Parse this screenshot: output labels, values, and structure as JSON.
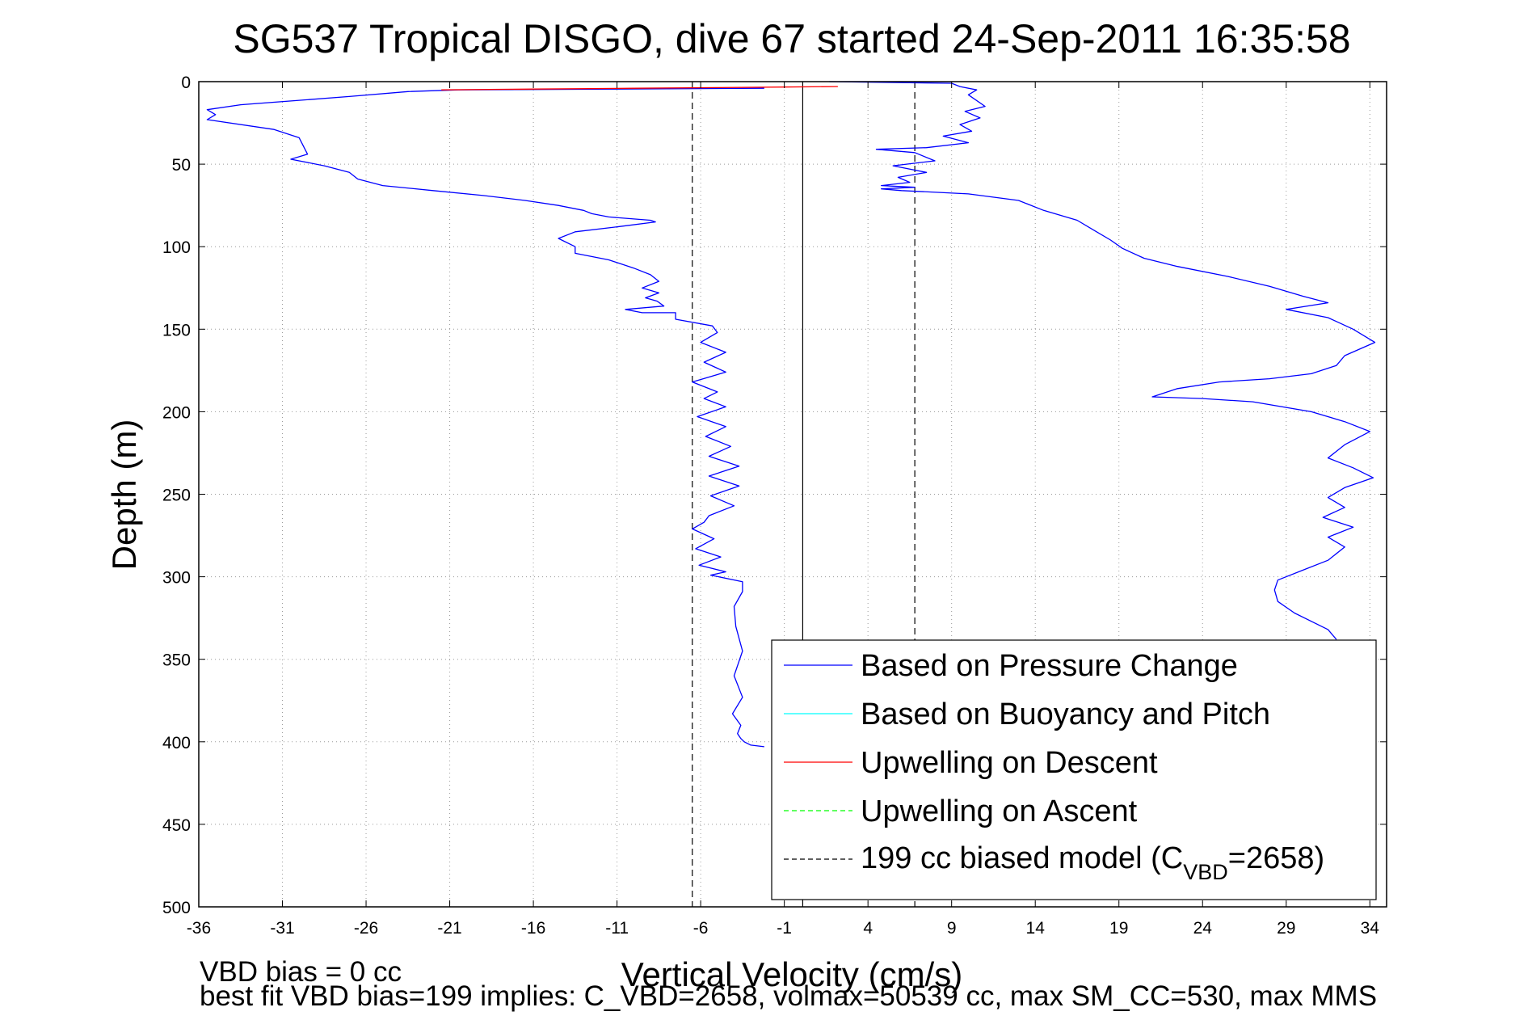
{
  "chart_data": {
    "type": "line",
    "title": "SG537 Tropical DISGO, dive 67 started 24-Sep-2011 16:35:58",
    "xlabel": "Vertical Velocity (cm/s)",
    "ylabel": "Depth (m)",
    "xlim": [
      -36,
      35
    ],
    "ylim": [
      0,
      500
    ],
    "y_reversed": true,
    "grid": true,
    "legend_position": "bottom-right",
    "x_ticks": [
      "-36",
      "-31",
      "-26",
      "-21",
      "-16",
      "-11",
      "-6",
      "-1",
      "4",
      "9",
      "14",
      "19",
      "24",
      "29",
      "34"
    ],
    "y_ticks": [
      "0",
      "50",
      "100",
      "150",
      "200",
      "250",
      "300",
      "350",
      "400",
      "450",
      "500"
    ],
    "legend": {
      "pressure": "Based on Pressure Change",
      "buoyancy": "Based on Buoyancy and Pitch",
      "up_descent": "Upwelling on Descent",
      "up_ascent": "Upwelling on Ascent",
      "model_prefix": "199 cc biased model (C",
      "model_sub": "VBD",
      "model_suffix": "=2658)"
    },
    "colors": {
      "pressure": "#0000ff",
      "buoyancy": "#00ffff",
      "up_descent": "#ff0000",
      "up_ascent": "#00ff00",
      "model": "#000000"
    },
    "series": [
      {
        "name": "Based on Pressure Change",
        "segment": "descent",
        "x": [
          -2.2,
          -20.5,
          -23.5,
          -27,
          -33.5,
          -35.5,
          -35,
          -35.5,
          -31.5,
          -30,
          -29.5,
          -30.5,
          -28.5,
          -27,
          -26.5,
          -25,
          -22,
          -19,
          -16.5,
          -14.5,
          -13,
          -12.5,
          -11.5,
          -9,
          -8.7,
          -11,
          -13.5,
          -14.5,
          -13.5,
          -13.5,
          -11.5,
          -10,
          -9,
          -8.5,
          -9.5,
          -8.5,
          -9.3,
          -8.6,
          -8.2,
          -10.5,
          -9.5,
          -7.5,
          -7.5,
          -5.3,
          -5,
          -6,
          -4.5,
          -5.8,
          -4.5,
          -6.5,
          -5,
          -5.8,
          -4.5,
          -6.2,
          -4.5,
          -5.7,
          -4.2,
          -5.5,
          -3.7,
          -5.5,
          -3.7,
          -5.4,
          -4,
          -5.5,
          -5.8,
          -6.5,
          -5.2,
          -6.3,
          -4.8,
          -6.1,
          -4.5,
          -5.4,
          -3.5,
          -3.5,
          -4,
          -3.9,
          -3.5,
          -4,
          -3.5,
          -4.1,
          -3.6,
          -3.8,
          -3.6,
          -3.4,
          -3,
          -2.2
        ],
        "y": [
          4,
          5,
          6,
          9,
          14,
          17,
          20,
          23,
          29,
          34,
          44,
          47,
          51,
          55,
          59,
          63,
          66,
          69,
          72,
          75,
          78,
          80,
          82,
          84,
          85,
          88,
          91,
          95,
          100,
          104,
          108,
          113,
          117,
          121,
          125,
          128,
          131,
          133,
          136,
          138,
          140,
          140,
          144,
          148,
          152,
          158,
          164,
          170,
          176,
          182,
          188,
          192,
          197,
          203,
          209,
          215,
          221,
          227,
          233,
          239,
          245,
          251,
          257,
          263,
          267,
          271,
          277,
          283,
          288,
          293,
          297,
          299,
          303,
          309,
          318,
          330,
          345,
          360,
          373,
          383,
          390,
          395,
          398,
          400,
          402,
          403
        ]
      },
      {
        "name": "Based on Pressure Change",
        "segment": "ascent",
        "x": [
          1.7,
          9,
          9.5,
          10.5,
          10,
          11,
          9.8,
          10.7,
          9.5,
          10.2,
          8.5,
          10,
          7.5,
          4.5,
          6.8,
          8,
          5.5,
          7.5,
          5.8,
          6.5,
          4.8,
          6.8,
          4.8,
          6,
          10,
          13,
          14.5,
          16.5,
          17.5,
          18.5,
          19.2,
          20.5,
          22.5,
          25.5,
          28,
          30,
          31.5,
          29,
          31.5,
          33,
          34.3,
          32.5,
          32,
          30.5,
          28,
          25,
          22.5,
          21,
          24,
          27,
          30.5,
          32.5,
          34,
          32.5,
          31.5,
          33,
          34.2,
          32.5,
          31.5,
          32.5,
          31.2,
          33,
          31.5,
          32.5,
          31.5,
          30,
          28.5,
          28.3,
          28.5,
          29.5,
          31.5,
          32
        ],
        "y": [
          0,
          1,
          3,
          5,
          8,
          15,
          18,
          22,
          26,
          30,
          33,
          37,
          40,
          41,
          43,
          48,
          51,
          55,
          58,
          61,
          63,
          64,
          65,
          66,
          68,
          72,
          78,
          84,
          90,
          96,
          101,
          107,
          112,
          118,
          124,
          130,
          134,
          138,
          143,
          150,
          158,
          166,
          172,
          177,
          180,
          182,
          186,
          191,
          192,
          194,
          200,
          206,
          212,
          220,
          228,
          234,
          240,
          246,
          252,
          258,
          264,
          270,
          276,
          282,
          290,
          296,
          302,
          308,
          315,
          322,
          332,
          338
        ]
      },
      {
        "name": "Upwelling on Descent",
        "x": [
          -21.5,
          -16,
          -10,
          -5,
          -1,
          2.2
        ],
        "y": [
          5,
          4.5,
          4,
          3.6,
          3.3,
          3
        ]
      }
    ],
    "reference_lines": [
      {
        "label": "199 cc biased model",
        "x": -6.5,
        "style": "dashed"
      },
      {
        "label": "199 cc biased model",
        "x": 6.8,
        "style": "dashed"
      },
      {
        "x": 0.1,
        "style": "solid"
      }
    ]
  },
  "footer": {
    "line1": "VBD bias = 0 cc",
    "line2": "best fit VBD bias=199 implies: C_VBD=2658, volmax=50539 cc, max SM_CC=530, max MMS"
  }
}
